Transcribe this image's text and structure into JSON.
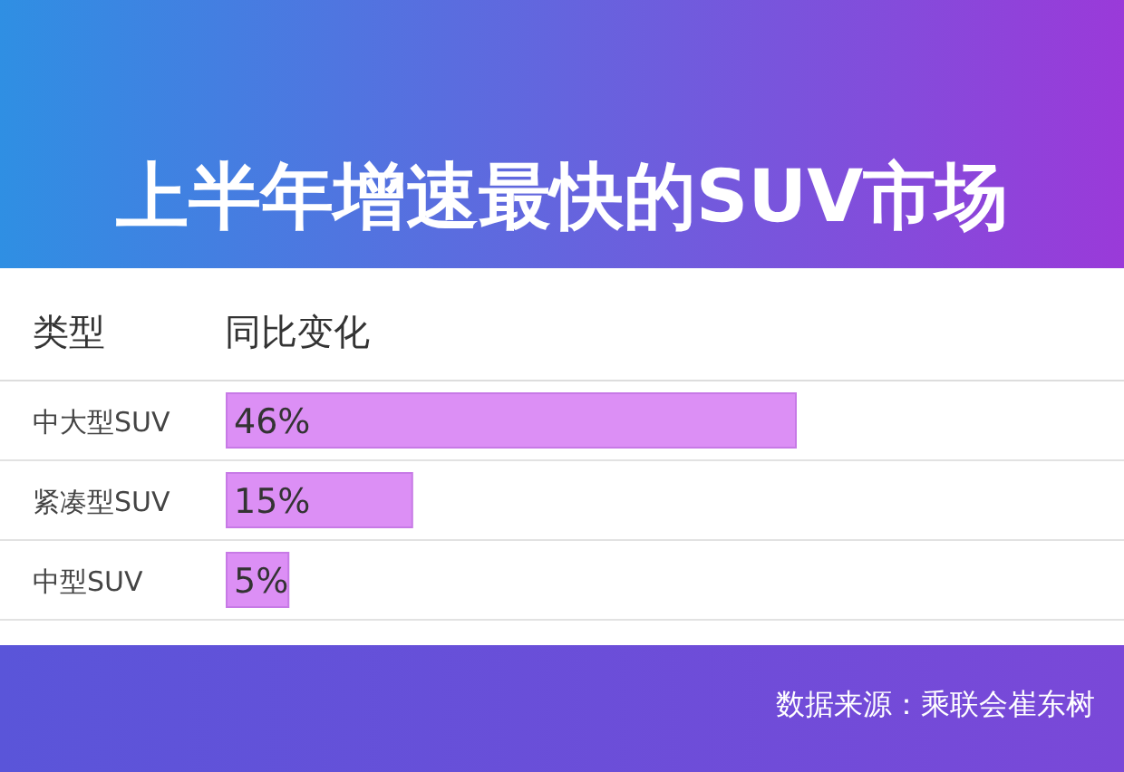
{
  "chart_data": {
    "type": "bar",
    "orientation": "horizontal",
    "title": "上半年增速最快的SUV市场",
    "ylabel": "类型",
    "xlabel": "同比变化",
    "categories": [
      "中大型SUV",
      "紧凑型SUV",
      "中型SUV"
    ],
    "values": [
      46,
      15,
      5
    ],
    "value_labels": [
      "46%",
      "15%",
      "5%"
    ],
    "color": "#dc8ff5",
    "annotations": [
      "数据来源：乘联会崔东树"
    ]
  }
}
